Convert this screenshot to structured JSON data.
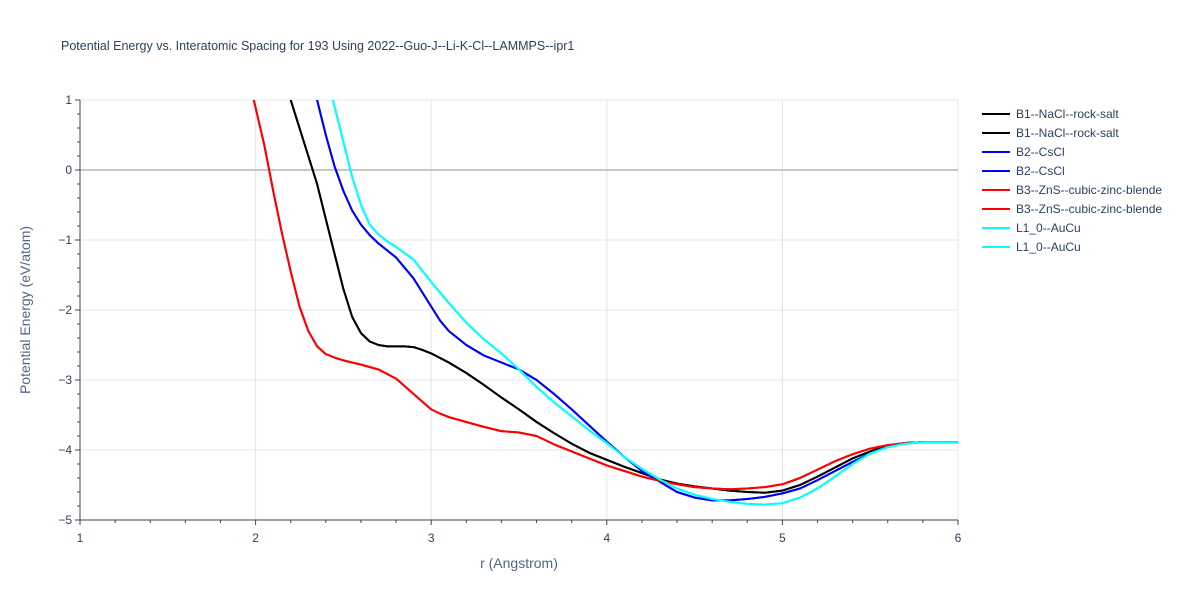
{
  "chart_data": {
    "type": "line",
    "title": "Potential Energy vs. Interatomic Spacing for 193 Using 2022--Guo-J--Li-K-Cl--LAMMPS--ipr1",
    "xlabel": "r (Angstrom)",
    "ylabel": "Potential Energy (eV/atom)",
    "xlim": [
      1,
      6
    ],
    "ylim": [
      -5,
      1
    ],
    "xticks": [
      1,
      2,
      3,
      4,
      5,
      6
    ],
    "yticks": [
      1,
      0,
      -1,
      -2,
      -3,
      -4,
      -5
    ],
    "xtick_labels": [
      "1",
      "2",
      "3",
      "4",
      "5",
      "6"
    ],
    "ytick_labels": [
      "1",
      "0",
      "−1",
      "−2",
      "−3",
      "−4",
      "−5"
    ],
    "grid": true,
    "legend_position": "right",
    "series": [
      {
        "name": "B1--NaCl--rock-salt",
        "color": "#000000",
        "x": [
          2.2,
          2.25,
          2.3,
          2.35,
          2.4,
          2.45,
          2.5,
          2.55,
          2.6,
          2.65,
          2.7,
          2.75,
          2.8,
          2.85,
          2.9,
          2.95,
          3.0,
          3.1,
          3.2,
          3.3,
          3.4,
          3.5,
          3.6,
          3.7,
          3.8,
          3.9,
          4.0,
          4.1,
          4.2,
          4.3,
          4.4,
          4.5,
          4.6,
          4.7,
          4.8,
          4.9,
          5.0,
          5.1,
          5.2,
          5.3,
          5.4,
          5.5,
          5.6,
          5.7,
          5.8,
          5.9,
          6.0
        ],
        "y": [
          1.0,
          0.6,
          0.2,
          -0.2,
          -0.7,
          -1.2,
          -1.7,
          -2.1,
          -2.33,
          -2.45,
          -2.5,
          -2.52,
          -2.52,
          -2.52,
          -2.53,
          -2.57,
          -2.62,
          -2.75,
          -2.9,
          -3.07,
          -3.25,
          -3.42,
          -3.6,
          -3.76,
          -3.91,
          -4.04,
          -4.14,
          -4.24,
          -4.33,
          -4.42,
          -4.48,
          -4.52,
          -4.55,
          -4.58,
          -4.6,
          -4.61,
          -4.58,
          -4.5,
          -4.38,
          -4.25,
          -4.12,
          -4.02,
          -3.94,
          -3.9,
          -3.89,
          -3.89,
          -3.89
        ]
      },
      {
        "name": "B1--NaCl--rock-salt",
        "color": "#000000",
        "x": [
          2.2,
          2.25,
          2.3,
          2.35,
          2.4,
          2.45,
          2.5,
          2.55,
          2.6,
          2.65,
          2.7,
          2.75,
          2.8,
          2.85,
          2.9,
          2.95,
          3.0,
          3.1,
          3.2,
          3.3,
          3.4,
          3.5,
          3.6,
          3.7,
          3.8,
          3.9,
          4.0,
          4.1,
          4.2,
          4.3,
          4.4,
          4.5,
          4.6,
          4.7,
          4.8,
          4.9,
          5.0,
          5.1,
          5.2,
          5.3,
          5.4,
          5.5,
          5.6,
          5.7,
          5.8,
          5.9,
          6.0
        ],
        "y": [
          1.0,
          0.6,
          0.2,
          -0.2,
          -0.7,
          -1.2,
          -1.7,
          -2.1,
          -2.33,
          -2.45,
          -2.5,
          -2.52,
          -2.52,
          -2.52,
          -2.53,
          -2.57,
          -2.62,
          -2.75,
          -2.9,
          -3.07,
          -3.25,
          -3.42,
          -3.6,
          -3.76,
          -3.91,
          -4.04,
          -4.14,
          -4.24,
          -4.33,
          -4.42,
          -4.48,
          -4.52,
          -4.55,
          -4.58,
          -4.6,
          -4.61,
          -4.58,
          -4.5,
          -4.38,
          -4.25,
          -4.12,
          -4.02,
          -3.94,
          -3.9,
          -3.89,
          -3.89,
          -3.89
        ]
      },
      {
        "name": "B2--CsCl",
        "color": "#0000ff",
        "x": [
          2.35,
          2.4,
          2.45,
          2.5,
          2.55,
          2.6,
          2.65,
          2.7,
          2.8,
          2.9,
          3.0,
          3.05,
          3.1,
          3.2,
          3.3,
          3.4,
          3.5,
          3.6,
          3.7,
          3.8,
          3.9,
          4.0,
          4.1,
          4.2,
          4.3,
          4.4,
          4.5,
          4.6,
          4.7,
          4.8,
          4.9,
          5.0,
          5.1,
          5.2,
          5.3,
          5.4,
          5.5,
          5.6,
          5.7,
          5.8,
          5.9,
          6.0
        ],
        "y": [
          1.0,
          0.5,
          0.05,
          -0.3,
          -0.58,
          -0.78,
          -0.93,
          -1.05,
          -1.25,
          -1.55,
          -1.95,
          -2.15,
          -2.3,
          -2.5,
          -2.65,
          -2.75,
          -2.85,
          -3.0,
          -3.2,
          -3.42,
          -3.65,
          -3.88,
          -4.1,
          -4.3,
          -4.45,
          -4.6,
          -4.68,
          -4.72,
          -4.72,
          -4.7,
          -4.67,
          -4.62,
          -4.55,
          -4.43,
          -4.3,
          -4.17,
          -4.05,
          -3.95,
          -3.9,
          -3.89,
          -3.89,
          -3.89
        ]
      },
      {
        "name": "B2--CsCl",
        "color": "#0000ff",
        "x": [
          2.35,
          2.4,
          2.45,
          2.5,
          2.55,
          2.6,
          2.65,
          2.7,
          2.8,
          2.9,
          3.0,
          3.05,
          3.1,
          3.2,
          3.3,
          3.4,
          3.5,
          3.6,
          3.7,
          3.8,
          3.9,
          4.0,
          4.1,
          4.2,
          4.3,
          4.4,
          4.5,
          4.6,
          4.7,
          4.8,
          4.9,
          5.0,
          5.1,
          5.2,
          5.3,
          5.4,
          5.5,
          5.6,
          5.7,
          5.8,
          5.9,
          6.0
        ],
        "y": [
          1.0,
          0.5,
          0.05,
          -0.3,
          -0.58,
          -0.78,
          -0.93,
          -1.05,
          -1.25,
          -1.55,
          -1.95,
          -2.15,
          -2.3,
          -2.5,
          -2.65,
          -2.75,
          -2.85,
          -3.0,
          -3.2,
          -3.42,
          -3.65,
          -3.88,
          -4.1,
          -4.3,
          -4.45,
          -4.6,
          -4.68,
          -4.72,
          -4.72,
          -4.7,
          -4.67,
          -4.62,
          -4.55,
          -4.43,
          -4.3,
          -4.17,
          -4.05,
          -3.95,
          -3.9,
          -3.89,
          -3.89,
          -3.89
        ]
      },
      {
        "name": "B3--ZnS--cubic-zinc-blende",
        "color": "#ff0000",
        "x": [
          1.99,
          2.05,
          2.1,
          2.15,
          2.2,
          2.25,
          2.3,
          2.35,
          2.4,
          2.45,
          2.5,
          2.6,
          2.7,
          2.8,
          2.9,
          3.0,
          3.05,
          3.1,
          3.2,
          3.3,
          3.4,
          3.5,
          3.6,
          3.7,
          3.8,
          3.9,
          4.0,
          4.1,
          4.2,
          4.3,
          4.4,
          4.5,
          4.6,
          4.7,
          4.8,
          4.9,
          5.0,
          5.1,
          5.2,
          5.3,
          5.4,
          5.5,
          5.6,
          5.7,
          5.8,
          5.9,
          6.0
        ],
        "y": [
          1.0,
          0.35,
          -0.3,
          -0.9,
          -1.45,
          -1.95,
          -2.3,
          -2.52,
          -2.63,
          -2.68,
          -2.72,
          -2.78,
          -2.85,
          -2.98,
          -3.2,
          -3.42,
          -3.48,
          -3.53,
          -3.6,
          -3.67,
          -3.73,
          -3.75,
          -3.8,
          -3.92,
          -4.02,
          -4.12,
          -4.22,
          -4.3,
          -4.38,
          -4.44,
          -4.49,
          -4.53,
          -4.55,
          -4.56,
          -4.55,
          -4.53,
          -4.49,
          -4.4,
          -4.28,
          -4.16,
          -4.06,
          -3.98,
          -3.93,
          -3.9,
          -3.89,
          -3.89,
          -3.89
        ]
      },
      {
        "name": "B3--ZnS--cubic-zinc-blende",
        "color": "#ff0000",
        "x": [
          1.99,
          2.05,
          2.1,
          2.15,
          2.2,
          2.25,
          2.3,
          2.35,
          2.4,
          2.45,
          2.5,
          2.6,
          2.7,
          2.8,
          2.9,
          3.0,
          3.05,
          3.1,
          3.2,
          3.3,
          3.4,
          3.5,
          3.6,
          3.7,
          3.8,
          3.9,
          4.0,
          4.1,
          4.2,
          4.3,
          4.4,
          4.5,
          4.6,
          4.7,
          4.8,
          4.9,
          5.0,
          5.1,
          5.2,
          5.3,
          5.4,
          5.5,
          5.6,
          5.7,
          5.8,
          5.9,
          6.0
        ],
        "y": [
          1.0,
          0.35,
          -0.3,
          -0.9,
          -1.45,
          -1.95,
          -2.3,
          -2.52,
          -2.63,
          -2.68,
          -2.72,
          -2.78,
          -2.85,
          -2.98,
          -3.2,
          -3.42,
          -3.48,
          -3.53,
          -3.6,
          -3.67,
          -3.73,
          -3.75,
          -3.8,
          -3.92,
          -4.02,
          -4.12,
          -4.22,
          -4.3,
          -4.38,
          -4.44,
          -4.49,
          -4.53,
          -4.55,
          -4.56,
          -4.55,
          -4.53,
          -4.49,
          -4.4,
          -4.28,
          -4.16,
          -4.06,
          -3.98,
          -3.93,
          -3.9,
          -3.89,
          -3.89,
          -3.89
        ]
      },
      {
        "name": "L1_0--AuCu",
        "color": "#00ffff",
        "x": [
          2.44,
          2.5,
          2.55,
          2.6,
          2.65,
          2.7,
          2.75,
          2.8,
          2.9,
          3.0,
          3.1,
          3.2,
          3.3,
          3.4,
          3.5,
          3.6,
          3.7,
          3.8,
          3.9,
          4.0,
          4.1,
          4.2,
          4.3,
          4.4,
          4.5,
          4.6,
          4.7,
          4.8,
          4.9,
          5.0,
          5.1,
          5.2,
          5.3,
          5.4,
          5.5,
          5.6,
          5.7,
          5.8,
          5.9,
          6.0
        ],
        "y": [
          1.0,
          0.4,
          -0.1,
          -0.5,
          -0.78,
          -0.92,
          -1.02,
          -1.1,
          -1.28,
          -1.6,
          -1.9,
          -2.18,
          -2.42,
          -2.62,
          -2.85,
          -3.1,
          -3.32,
          -3.52,
          -3.72,
          -3.9,
          -4.1,
          -4.27,
          -4.42,
          -4.55,
          -4.64,
          -4.7,
          -4.74,
          -4.77,
          -4.78,
          -4.76,
          -4.68,
          -4.55,
          -4.38,
          -4.2,
          -4.05,
          -3.96,
          -3.91,
          -3.89,
          -3.89,
          -3.89
        ]
      },
      {
        "name": "L1_0--AuCu",
        "color": "#00ffff",
        "x": [
          2.44,
          2.5,
          2.55,
          2.6,
          2.65,
          2.7,
          2.75,
          2.8,
          2.9,
          3.0,
          3.1,
          3.2,
          3.3,
          3.4,
          3.5,
          3.6,
          3.7,
          3.8,
          3.9,
          4.0,
          4.1,
          4.2,
          4.3,
          4.4,
          4.5,
          4.6,
          4.7,
          4.8,
          4.9,
          5.0,
          5.1,
          5.2,
          5.3,
          5.4,
          5.5,
          5.6,
          5.7,
          5.8,
          5.9,
          6.0
        ],
        "y": [
          1.0,
          0.4,
          -0.1,
          -0.5,
          -0.78,
          -0.92,
          -1.02,
          -1.1,
          -1.28,
          -1.6,
          -1.9,
          -2.18,
          -2.42,
          -2.62,
          -2.85,
          -3.1,
          -3.32,
          -3.52,
          -3.72,
          -3.9,
          -4.1,
          -4.27,
          -4.42,
          -4.55,
          -4.64,
          -4.7,
          -4.74,
          -4.77,
          -4.78,
          -4.76,
          -4.68,
          -4.55,
          -4.38,
          -4.2,
          -4.05,
          -3.96,
          -3.91,
          -3.89,
          -3.89,
          -3.89
        ]
      }
    ]
  }
}
